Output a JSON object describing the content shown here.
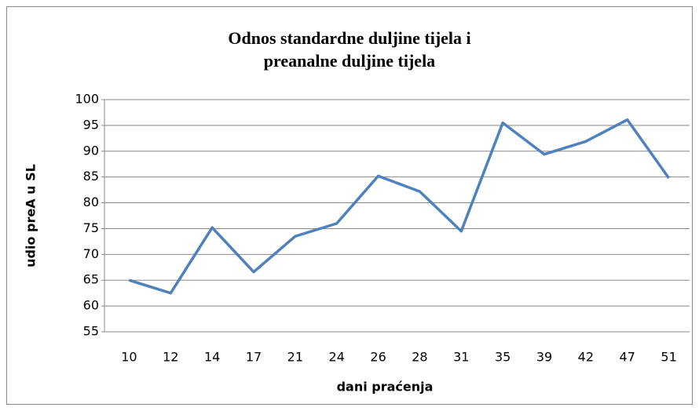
{
  "chart_data": {
    "type": "line",
    "title": "Odnos standardne duljine tijela i preanalne duljine tijela",
    "x_label": "dani praćenja",
    "y_label": "udio preA u SL",
    "categories": [
      "10",
      "12",
      "14",
      "17",
      "21",
      "24",
      "26",
      "28",
      "31",
      "35",
      "39",
      "42",
      "47",
      "51"
    ],
    "values": [
      65,
      62.5,
      75.2,
      66.6,
      73.5,
      76,
      85.2,
      82.2,
      74.5,
      95.5,
      89.4,
      91.9,
      96.1,
      84.8
    ],
    "color": "#4f81bd",
    "ylim": [
      55,
      100
    ],
    "yticks": [
      55,
      60,
      65,
      70,
      75,
      80,
      85,
      90,
      95,
      100
    ],
    "grid": true
  }
}
